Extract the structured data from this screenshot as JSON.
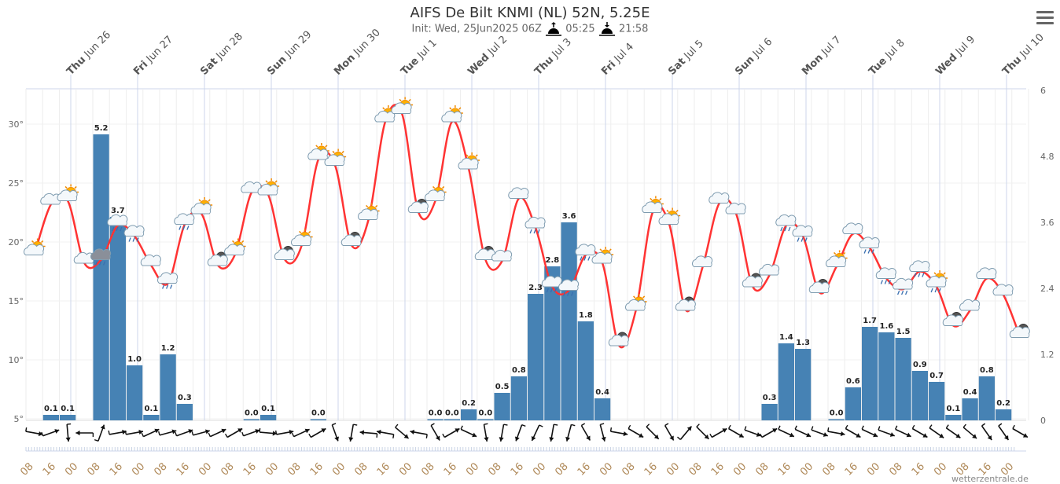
{
  "header": {
    "title": "AIFS De Bilt KNMI (NL) 52N, 5.25E",
    "init": "Init: Wed, 25Jun2025 06Z",
    "sunrise": "05:25",
    "sunset": "21:58",
    "sunrise_icon": "sunrise-icon",
    "sunset_icon": "sunset-icon"
  },
  "menu_icon": "hamburger-menu-icon",
  "credit": "wetterzentrale.de",
  "chart_data": {
    "type": "bar+line",
    "x_start": "Jun 25 08",
    "x_step_hours": 6,
    "day_labels": [
      {
        "day": "Thu",
        "date": "Jun 26"
      },
      {
        "day": "Fri",
        "date": "Jun 27"
      },
      {
        "day": "Sat",
        "date": "Jun 28"
      },
      {
        "day": "Sun",
        "date": "Jun 29"
      },
      {
        "day": "Mon",
        "date": "Jun 30"
      },
      {
        "day": "Tue",
        "date": "Jul 1"
      },
      {
        "day": "Wed",
        "date": "Jul 2"
      },
      {
        "day": "Thu",
        "date": "Jul 3"
      },
      {
        "day": "Fri",
        "date": "Jul 4"
      },
      {
        "day": "Sat",
        "date": "Jul 5"
      },
      {
        "day": "Sun",
        "date": "Jul 6"
      },
      {
        "day": "Mon",
        "date": "Jul 7"
      },
      {
        "day": "Tue",
        "date": "Jul 8"
      },
      {
        "day": "Wed",
        "date": "Jul 9"
      },
      {
        "day": "Thu",
        "date": "Jul 10"
      }
    ],
    "hour_labels": [
      "08",
      "16",
      "00"
    ],
    "left_axis": {
      "ticks": [
        "5°",
        "10°",
        "15°",
        "20°",
        "25°",
        "30°"
      ],
      "values": [
        5,
        10,
        15,
        20,
        25,
        30
      ],
      "ylim": [
        5,
        33
      ]
    },
    "right_axis": {
      "ticks": [
        "0",
        "1.2",
        "2.4",
        "3.6",
        "4.8",
        "6"
      ],
      "values": [
        0,
        1.2,
        2.4,
        3.6,
        4.8,
        6
      ],
      "ylim": [
        0,
        6
      ]
    },
    "colors": {
      "temperature": "#ff3333",
      "precipitation": "#4682b4",
      "grid": "#e6e6e6",
      "axis": "#ccd6eb"
    },
    "temperature": [
      18.9,
      23.2,
      23.5,
      18.2,
      18.5,
      21.4,
      20.5,
      18.0,
      16.5,
      21.5,
      22.4,
      18.0,
      18.9,
      24.2,
      24.0,
      18.5,
      19.7,
      27.0,
      26.5,
      19.7,
      21.9,
      30.2,
      30.9,
      22.5,
      23.5,
      30.2,
      26.2,
      18.5,
      18.4,
      23.7,
      21.2,
      16.2,
      15.9,
      18.9,
      18.2,
      11.2,
      14.2,
      22.5,
      21.5,
      14.2,
      17.9,
      23.3,
      22.4,
      16.2,
      17.2,
      21.4,
      20.5,
      15.7,
      17.9,
      20.7,
      19.5,
      16.9,
      16.0,
      17.5,
      16.2,
      12.9,
      14.2,
      16.9,
      15.5,
      11.9
    ],
    "precipitation": [
      null,
      0.1,
      0.1,
      null,
      5.2,
      3.7,
      1.0,
      0.1,
      1.2,
      0.3,
      null,
      null,
      null,
      0.0,
      0.1,
      null,
      null,
      0.0,
      null,
      null,
      null,
      null,
      null,
      null,
      0.0,
      0.0,
      0.2,
      0.0,
      0.5,
      0.8,
      2.3,
      2.8,
      3.6,
      1.8,
      0.4,
      null,
      null,
      null,
      null,
      null,
      null,
      null,
      null,
      null,
      0.3,
      1.4,
      1.3,
      null,
      0.0,
      0.6,
      1.7,
      1.6,
      1.5,
      0.9,
      0.7,
      0.1,
      0.4,
      0.8,
      0.2,
      null
    ],
    "weather_icons": [
      "sun-cloud",
      "cloud",
      "sun-cloud",
      "cloud",
      "thunder-cloud",
      "rain-cloud",
      "rain-cloud",
      "cloud",
      "rain-cloud",
      "rain-cloud",
      "sun-cloud",
      "moon-cloud",
      "sun-cloud",
      "cloud",
      "sun-cloud",
      "moon-cloud",
      "sun-cloud",
      "sun-cloud",
      "sun-cloud",
      "moon-cloud",
      "sun-cloud",
      "sun-cloud",
      "sun-cloud",
      "moon-cloud",
      "sun-cloud",
      "sun-cloud",
      "sun-cloud",
      "moon-cloud",
      "cloud",
      "cloud",
      "rain-cloud",
      "rain-cloud",
      "rain-cloud",
      "rain-cloud",
      "sun-cloud",
      "moon-cloud",
      "sun-cloud",
      "sun-cloud",
      "sun-cloud",
      "moon-cloud",
      "cloud",
      "cloud",
      "cloud",
      "moon-cloud",
      "cloud",
      "rain-cloud",
      "rain-cloud",
      "moon-cloud",
      "sun-cloud",
      "cloud",
      "rain-cloud",
      "rain-cloud",
      "rain-cloud",
      "rain-cloud",
      "sun-rain-cloud",
      "moon-cloud",
      "cloud",
      "cloud",
      "cloud",
      "moon-cloud"
    ],
    "wind_arrow_bearing_deg": [
      100,
      70,
      175,
      270,
      20,
      80,
      80,
      65,
      75,
      70,
      75,
      65,
      60,
      70,
      95,
      80,
      65,
      60,
      160,
      190,
      275,
      280,
      130,
      280,
      150,
      60,
      115,
      170,
      190,
      200,
      205,
      190,
      195,
      150,
      165,
      100,
      120,
      135,
      150,
      40,
      135,
      60,
      120,
      110,
      60,
      115,
      115,
      110,
      100,
      120,
      115,
      110,
      115,
      120,
      125,
      125,
      130,
      145,
      145,
      120
    ],
    "grid": true,
    "legend": "none"
  }
}
